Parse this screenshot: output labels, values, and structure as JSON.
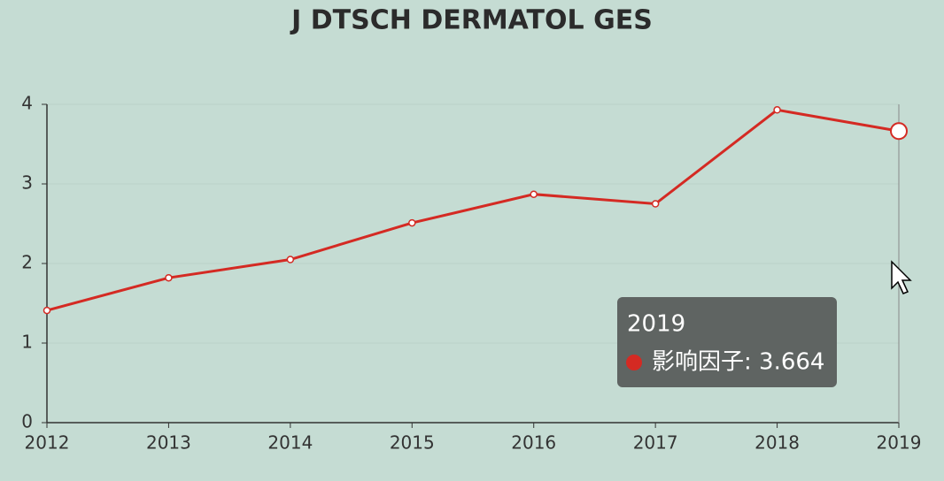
{
  "chart_data": {
    "type": "line",
    "title": "J DTSCH DERMATOL GES",
    "categories": [
      "2012",
      "2013",
      "2014",
      "2015",
      "2016",
      "2017",
      "2018",
      "2019"
    ],
    "series": [
      {
        "name": "影响因子",
        "color": "#d42a23",
        "values": [
          1.41,
          1.82,
          2.05,
          2.51,
          2.87,
          2.75,
          3.93,
          3.664
        ]
      }
    ],
    "ylim": [
      0,
      4
    ],
    "yticks": [
      0,
      1,
      2,
      3,
      4
    ],
    "grid": true,
    "tooltip": {
      "text": "影响因子: 3.664"
    }
  }
}
